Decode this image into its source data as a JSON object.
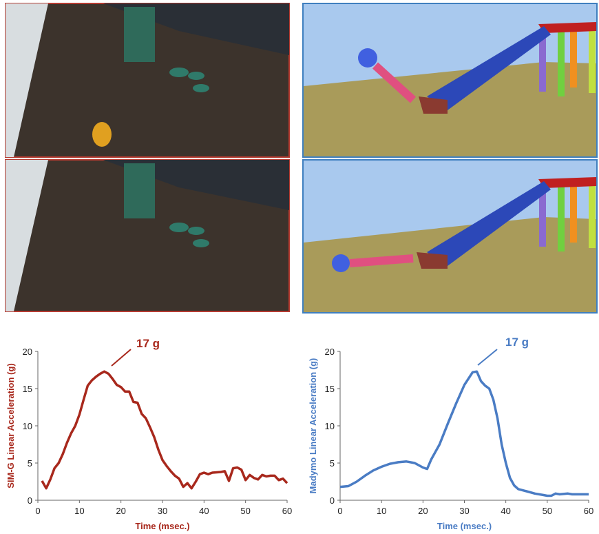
{
  "chart_data": [
    {
      "type": "line",
      "color": "#a8281c",
      "y_label": "SIM-G Linear Acceleration (g)",
      "x_label": "Time (msec.)",
      "annotation": "17 g",
      "xlim": [
        0,
        60
      ],
      "xticks": [
        0,
        10,
        20,
        30,
        40,
        50,
        60
      ],
      "ylim": [
        0,
        20
      ],
      "yticks": [
        0,
        5,
        10,
        15,
        20
      ],
      "x": [
        1,
        2,
        3,
        4,
        5,
        6,
        7,
        8,
        9,
        10,
        11,
        12,
        13,
        14,
        15,
        16,
        17,
        18,
        19,
        20,
        21,
        22,
        23,
        24,
        25,
        26,
        27,
        28,
        29,
        30,
        31,
        32,
        33,
        34,
        35,
        36,
        37,
        38,
        39,
        40,
        41,
        42,
        44,
        45,
        46,
        47,
        48,
        49,
        50,
        51,
        52,
        53,
        54,
        55,
        56,
        57,
        58,
        59,
        60
      ],
      "values": [
        2.6,
        1.6,
        2.8,
        4.3,
        5,
        6.2,
        7.7,
        9,
        10,
        11.5,
        13.5,
        15.4,
        16.1,
        16.6,
        17,
        17.3,
        17,
        16.3,
        15.5,
        15.2,
        14.6,
        14.6,
        13.2,
        13.1,
        11.6,
        11,
        9.8,
        8.5,
        6.8,
        5.4,
        4.6,
        3.9,
        3.3,
        2.9,
        1.8,
        2.3,
        1.6,
        2.5,
        3.5,
        3.7,
        3.5,
        3.7,
        3.8,
        3.9,
        2.6,
        4.3,
        4.4,
        4.1,
        2.7,
        3.4,
        3,
        2.8,
        3.4,
        3.2,
        3.3,
        3.3,
        2.7,
        2.9,
        2.3
      ]
    },
    {
      "type": "line",
      "color": "#4a7cc4",
      "y_label": "Madymo Linear Acceleration (g)",
      "x_label": "Time (msec.)",
      "annotation": "17 g",
      "xlim": [
        0,
        60
      ],
      "xticks": [
        0,
        10,
        20,
        30,
        40,
        50,
        60
      ],
      "ylim": [
        0,
        20
      ],
      "yticks": [
        0,
        5,
        10,
        15,
        20
      ],
      "x": [
        0,
        2,
        4,
        6,
        8,
        10,
        12,
        14,
        16,
        18,
        20,
        21,
        22,
        24,
        26,
        28,
        30,
        32,
        33,
        34,
        35,
        36,
        37,
        38,
        39,
        40,
        41,
        42,
        43,
        45,
        47,
        49,
        50,
        51,
        52,
        53,
        55,
        56,
        58,
        60
      ],
      "values": [
        1.8,
        1.9,
        2.5,
        3.3,
        4,
        4.5,
        4.9,
        5.1,
        5.2,
        5,
        4.4,
        4.2,
        5.5,
        7.5,
        10.3,
        13,
        15.5,
        17.2,
        17.3,
        16,
        15.4,
        15,
        13.5,
        11,
        7.5,
        5,
        3,
        2,
        1.5,
        1.2,
        0.9,
        0.7,
        0.6,
        0.6,
        0.9,
        0.8,
        0.9,
        0.8,
        0.8,
        0.8
      ]
    }
  ]
}
